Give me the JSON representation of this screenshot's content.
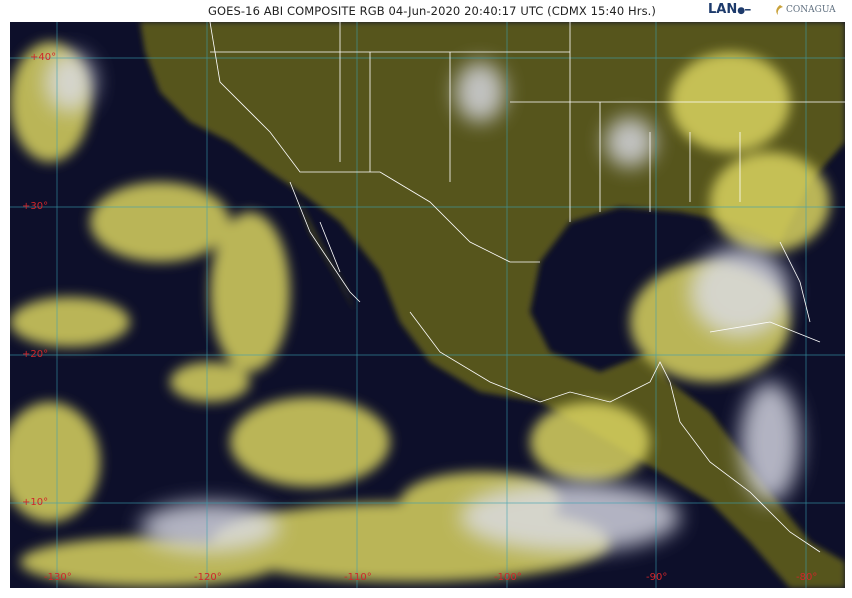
{
  "header": {
    "title": "GOES-16 ABI COMPOSITE RGB  04-Jun-2020 20:40:17 UTC (CDMX  15:40 Hrs.)",
    "logos": [
      "LAN",
      "CONAGUA"
    ]
  },
  "map": {
    "latitude_labels": [
      "+40°",
      "+30°",
      "+20°",
      "+10°"
    ],
    "longitude_labels": [
      "-130°",
      "-120°",
      "-110°",
      "-100°",
      "-90°",
      "-80°"
    ],
    "colors": {
      "ocean": "#0d0f2a",
      "land": "#5b5a1e",
      "cloud": "#e6e070",
      "high_cloud": "#d8dae6",
      "grid": "#3aa0b0",
      "borders": "#ffffff",
      "labels": "#d0262a"
    }
  }
}
